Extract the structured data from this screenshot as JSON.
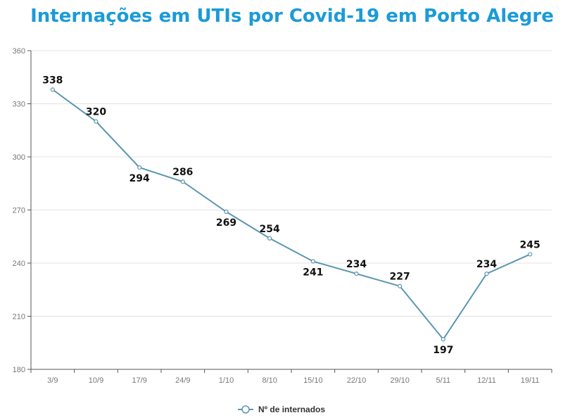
{
  "chart_data": {
    "type": "line",
    "title": "Internações em UTIs por Covid-19 em Porto Alegre",
    "categories": [
      "3/9",
      "10/9",
      "17/9",
      "24/9",
      "1/10",
      "8/10",
      "15/10",
      "22/10",
      "29/10",
      "5/11",
      "12/11",
      "19/11"
    ],
    "series": [
      {
        "name": "Nº de internados",
        "values": [
          338,
          320,
          294,
          286,
          269,
          254,
          241,
          234,
          227,
          197,
          234,
          245
        ]
      }
    ],
    "ylim": [
      180,
      360
    ],
    "yticks": [
      180,
      210,
      240,
      270,
      300,
      330,
      360
    ],
    "grid": true,
    "legend": "bottom",
    "colors": {
      "title": "#1b9bd7",
      "line": "#5b96b0"
    }
  }
}
